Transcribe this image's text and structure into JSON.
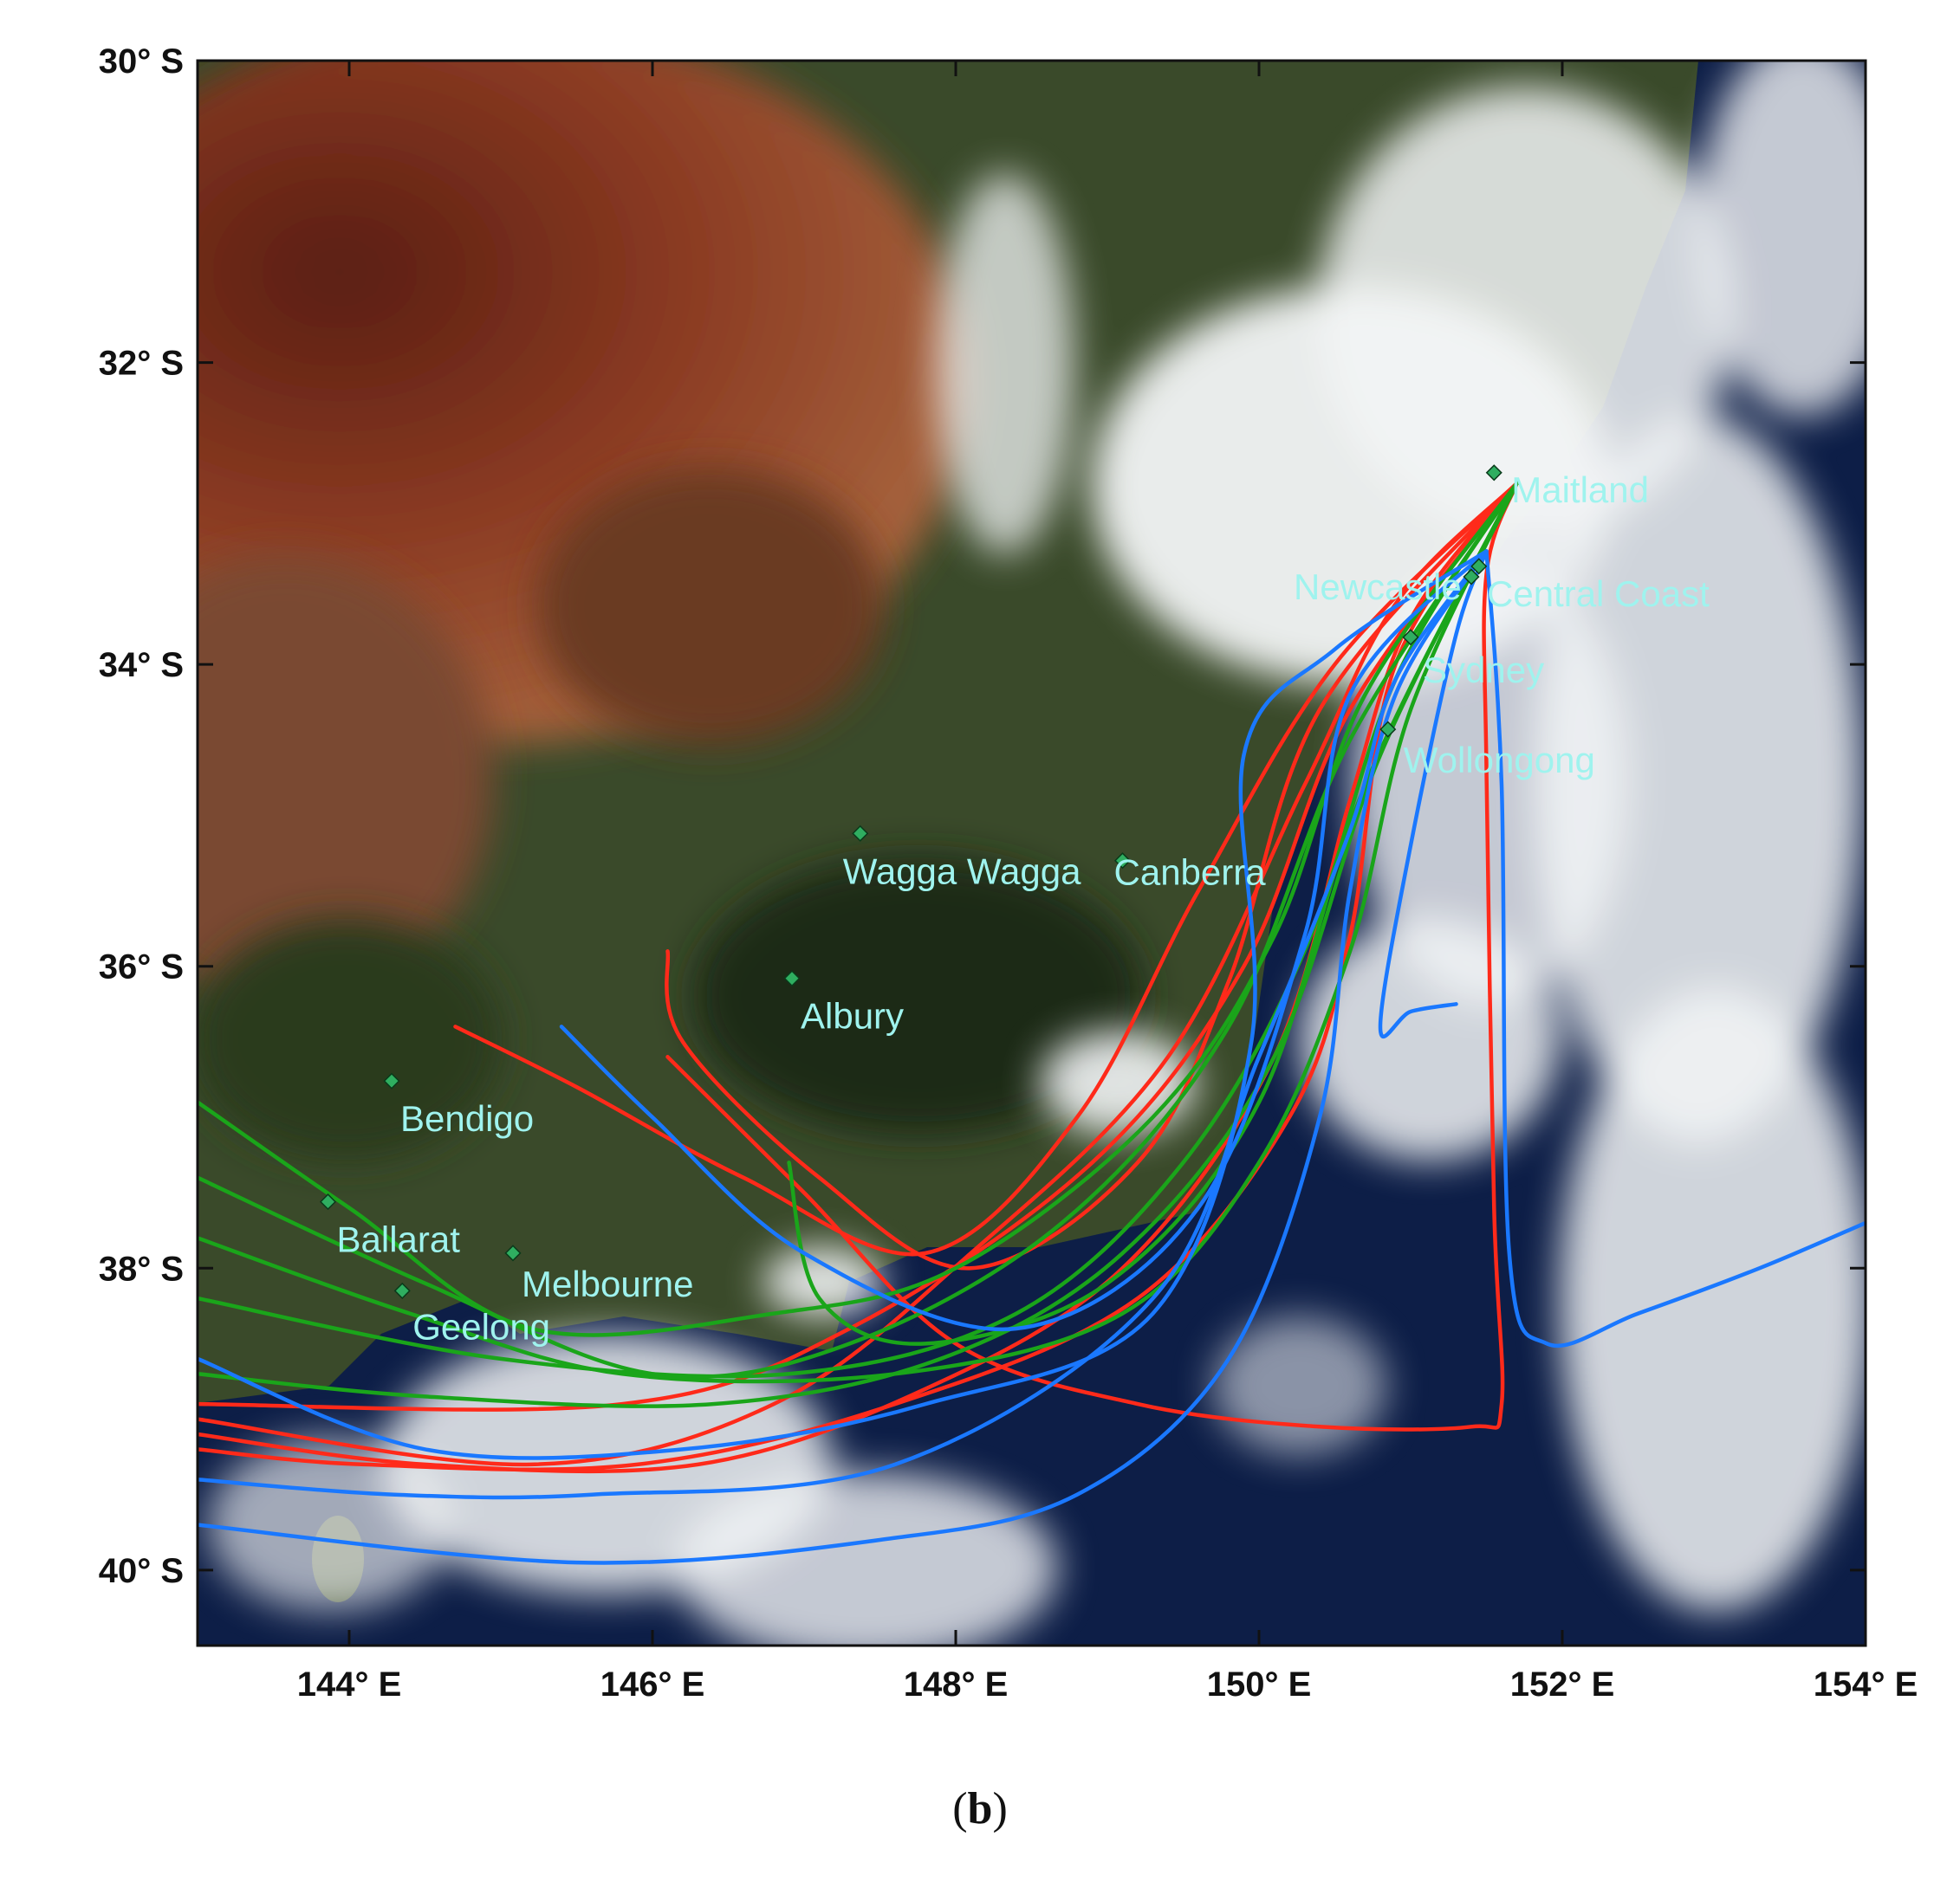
{
  "figure": {
    "panel_label": {
      "open": "(",
      "letter": "b",
      "close": ")"
    },
    "colors": {
      "red_tracks": "#ff2a1a",
      "green_tracks": "#1aa51a",
      "blue_tracks": "#1a78ff",
      "city_marker": "#2fae60",
      "city_label": "#9ff3ee",
      "ocean": "#0d1e47",
      "land_arid": "#8a3a22",
      "land_green": "#3a4a2a",
      "cloud": "#f2f4f6"
    },
    "map_extent": {
      "lon": [
        143,
        154
      ],
      "lat": [
        -40.5,
        -30
      ]
    },
    "lat_ticks": [
      {
        "value": -30,
        "label": "30° S"
      },
      {
        "value": -32,
        "label": "32° S"
      },
      {
        "value": -34,
        "label": "34° S"
      },
      {
        "value": -36,
        "label": "36° S"
      },
      {
        "value": -38,
        "label": "38° S"
      },
      {
        "value": -40,
        "label": "40° S"
      }
    ],
    "lon_ticks": [
      {
        "value": 144,
        "label": "144° E"
      },
      {
        "value": 146,
        "label": "146° E"
      },
      {
        "value": 148,
        "label": "148° E"
      },
      {
        "value": 150,
        "label": "150° E"
      },
      {
        "value": 152,
        "label": "152° E"
      },
      {
        "value": 154,
        "label": "154° E"
      }
    ],
    "cities": [
      {
        "name": "Maitland",
        "lon": 151.55,
        "lat": -32.73
      },
      {
        "name": "Newcastle",
        "lon": 151.45,
        "lat": -33.35
      },
      {
        "name": "Central Coast",
        "lon": 151.4,
        "lat": -33.42
      },
      {
        "name": "Sydney",
        "lon": 151.0,
        "lat": -33.82
      },
      {
        "name": "Wollongong",
        "lon": 150.85,
        "lat": -34.43
      },
      {
        "name": "Wagga Wagga",
        "lon": 147.37,
        "lat": -35.12
      },
      {
        "name": "Canberra",
        "lon": 149.1,
        "lat": -35.3
      },
      {
        "name": "Albury",
        "lon": 146.92,
        "lat": -36.08
      },
      {
        "name": "Bendigo",
        "lon": 144.28,
        "lat": -36.76
      },
      {
        "name": "Ballarat",
        "lon": 143.86,
        "lat": -37.56
      },
      {
        "name": "Melbourne",
        "lon": 145.08,
        "lat": -37.9
      },
      {
        "name": "Geelong",
        "lon": 144.35,
        "lat": -38.15
      }
    ]
  },
  "chart_data": {
    "type": "map-trajectories",
    "xlim": [
      143,
      154
    ],
    "ylim": [
      -40.5,
      -30
    ],
    "series": [
      {
        "color": "#ff2a1a",
        "tracks": [
          [
            [
              151.7,
              -32.8
            ],
            [
              150.9,
              -33.6
            ],
            [
              150.3,
              -34.8
            ],
            [
              149.4,
              -36.6
            ],
            [
              148.1,
              -37.9
            ],
            [
              146.8,
              -38.9
            ],
            [
              145.2,
              -39.3
            ],
            [
              143,
              -39.0
            ]
          ],
          [
            [
              151.7,
              -32.8
            ],
            [
              150.6,
              -34.3
            ],
            [
              149.9,
              -36.0
            ],
            [
              148.9,
              -37.3
            ],
            [
              147.3,
              -38.4
            ],
            [
              145.8,
              -38.9
            ],
            [
              143,
              -38.9
            ]
          ],
          [
            [
              151.7,
              -32.8
            ],
            [
              150.5,
              -34.0
            ],
            [
              149.6,
              -35.5
            ],
            [
              148.8,
              -37.0
            ],
            [
              147.8,
              -37.9
            ],
            [
              146.6,
              -37.4
            ],
            [
              145.5,
              -36.8
            ],
            [
              144.7,
              -36.4
            ]
          ],
          [
            [
              151.7,
              -32.8
            ],
            [
              150.4,
              -34.3
            ],
            [
              149.8,
              -36.1
            ],
            [
              149.2,
              -37.3
            ],
            [
              148.1,
              -38.0
            ],
            [
              147.1,
              -37.4
            ],
            [
              146.2,
              -36.5
            ],
            [
              146.1,
              -35.9
            ]
          ],
          [
            [
              151.7,
              -32.8
            ],
            [
              151.0,
              -33.7
            ],
            [
              150.6,
              -34.9
            ],
            [
              150.1,
              -36.6
            ],
            [
              149.1,
              -38.0
            ],
            [
              147.8,
              -38.8
            ],
            [
              146.3,
              -39.3
            ],
            [
              144.5,
              -39.3
            ],
            [
              143,
              -39.1
            ]
          ],
          [
            [
              151.7,
              -32.8
            ],
            [
              151.5,
              -33.4
            ],
            [
              151.5,
              -34.7
            ],
            [
              151.55,
              -37.6
            ],
            [
              151.6,
              -38.9
            ],
            [
              151.4,
              -39.05
            ],
            [
              150.4,
              -39.05
            ],
            [
              149.2,
              -38.9
            ],
            [
              148.0,
              -38.5
            ],
            [
              147.0,
              -37.5
            ],
            [
              146.1,
              -36.6
            ]
          ],
          [
            [
              151.7,
              -32.8
            ],
            [
              150.9,
              -34.0
            ],
            [
              150.6,
              -35.8
            ],
            [
              150.2,
              -37.0
            ],
            [
              149.2,
              -38.2
            ],
            [
              147.6,
              -38.9
            ],
            [
              145.9,
              -39.3
            ],
            [
              144.1,
              -39.3
            ],
            [
              143,
              -39.2
            ]
          ]
        ]
      },
      {
        "color": "#1aa51a",
        "tracks": [
          [
            [
              151.7,
              -32.8
            ],
            [
              150.7,
              -34.2
            ],
            [
              150.1,
              -35.8
            ],
            [
              149.3,
              -37.0
            ],
            [
              148.0,
              -38.0
            ],
            [
              146.8,
              -38.3
            ],
            [
              145.2,
              -38.4
            ],
            [
              144.0,
              -37.6
            ],
            [
              143,
              -36.9
            ]
          ],
          [
            [
              151.7,
              -32.8
            ],
            [
              150.6,
              -34.5
            ],
            [
              149.8,
              -36.4
            ],
            [
              148.7,
              -37.7
            ],
            [
              147.3,
              -38.5
            ],
            [
              146.0,
              -38.7
            ],
            [
              144.5,
              -38.1
            ],
            [
              143,
              -37.4
            ]
          ],
          [
            [
              151.7,
              -32.8
            ],
            [
              150.9,
              -34.1
            ],
            [
              150.3,
              -35.9
            ],
            [
              149.5,
              -37.3
            ],
            [
              148.4,
              -38.3
            ],
            [
              146.9,
              -38.7
            ],
            [
              145.0,
              -38.6
            ],
            [
              143,
              -38.2
            ]
          ],
          [
            [
              151.7,
              -32.8
            ],
            [
              151.0,
              -34.3
            ],
            [
              150.6,
              -35.9
            ],
            [
              150.0,
              -37.3
            ],
            [
              149.1,
              -38.3
            ],
            [
              147.6,
              -38.7
            ],
            [
              145.8,
              -38.7
            ],
            [
              144.4,
              -38.3
            ],
            [
              143,
              -37.8
            ]
          ],
          [
            [
              151.7,
              -32.8
            ],
            [
              150.8,
              -34.6
            ],
            [
              150.1,
              -36.6
            ],
            [
              149.1,
              -37.9
            ],
            [
              147.9,
              -38.6
            ],
            [
              146.4,
              -38.9
            ],
            [
              144.5,
              -38.85
            ],
            [
              143,
              -38.7
            ]
          ],
          [
            [
              151.7,
              -32.8
            ],
            [
              150.7,
              -34.8
            ],
            [
              150.0,
              -36.9
            ],
            [
              149.0,
              -38.1
            ],
            [
              147.8,
              -38.5
            ],
            [
              147.1,
              -38.2
            ],
            [
              146.9,
              -37.3
            ]
          ]
        ]
      },
      {
        "color": "#1a78ff",
        "tracks": [
          [
            [
              151.5,
              -33.25
            ],
            [
              151.6,
              -34.8
            ],
            [
              151.65,
              -37.9
            ],
            [
              151.9,
              -38.5
            ],
            [
              152.5,
              -38.3
            ],
            [
              153.3,
              -38.0
            ],
            [
              154,
              -37.7
            ]
          ],
          [
            [
              151.5,
              -33.25
            ],
            [
              150.5,
              -33.9
            ],
            [
              149.9,
              -34.6
            ],
            [
              149.95,
              -36.5
            ],
            [
              149.3,
              -38.3
            ],
            [
              147.8,
              -38.9
            ],
            [
              146.2,
              -39.2
            ],
            [
              144.5,
              -39.2
            ],
            [
              143,
              -38.6
            ]
          ],
          [
            [
              151.5,
              -33.25
            ],
            [
              150.6,
              -34.2
            ],
            [
              150.3,
              -35.8
            ],
            [
              149.6,
              -37.6
            ],
            [
              148.4,
              -38.4
            ],
            [
              147.0,
              -37.9
            ],
            [
              146.0,
              -37.0
            ],
            [
              145.4,
              -36.4
            ]
          ],
          [
            [
              151.5,
              -33.25
            ],
            [
              150.9,
              -34.1
            ],
            [
              150.6,
              -35.1
            ],
            [
              150.0,
              -36.6
            ],
            [
              149.3,
              -38.2
            ],
            [
              147.6,
              -39.3
            ],
            [
              145.6,
              -39.5
            ],
            [
              144.3,
              -39.5
            ],
            [
              143,
              -39.4
            ]
          ],
          [
            [
              151.5,
              -33.25
            ],
            [
              150.9,
              -34.2
            ],
            [
              150.6,
              -35.5
            ],
            [
              150.4,
              -37.0
            ],
            [
              149.8,
              -38.6
            ],
            [
              148.8,
              -39.5
            ],
            [
              147.5,
              -39.8
            ],
            [
              145.5,
              -39.95
            ],
            [
              143,
              -39.7
            ]
          ],
          [
            [
              151.5,
              -33.25
            ],
            [
              151.3,
              -33.8
            ],
            [
              151.0,
              -35.2
            ],
            [
              150.8,
              -36.4
            ],
            [
              151.0,
              -36.3
            ],
            [
              151.3,
              -36.25
            ]
          ]
        ]
      }
    ]
  }
}
